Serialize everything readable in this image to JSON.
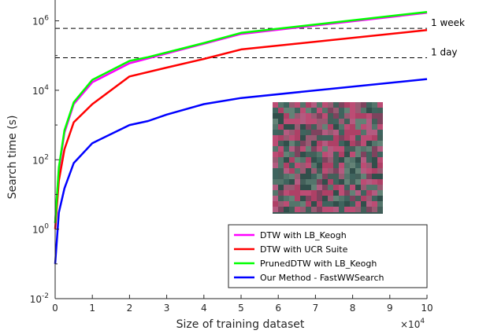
{
  "chart_data": {
    "type": "line",
    "title": "",
    "xlabel": "Size of training dataset",
    "ylabel": "Search time (s)",
    "x_multiplier_label": {
      "base": "×10",
      "exp": "4"
    },
    "xlim": [
      0,
      10
    ],
    "ylim_log10": [
      -2,
      6.6
    ],
    "yscale": "log",
    "grid": false,
    "legend_position": "bottom-right",
    "x_ticks": [
      0,
      1,
      2,
      3,
      4,
      5,
      6,
      7,
      8,
      9,
      10
    ],
    "y_ticks": [
      {
        "exp": -2,
        "base": "10",
        "sup": "-2"
      },
      {
        "exp": 0,
        "base": "10",
        "sup": "0"
      },
      {
        "exp": 2,
        "base": "10",
        "sup": "2"
      },
      {
        "exp": 4,
        "base": "10",
        "sup": "4"
      },
      {
        "exp": 6,
        "base": "10",
        "sup": "6"
      }
    ],
    "reference_lines": [
      {
        "label": "1 week",
        "y": 604800
      },
      {
        "label": "1 day",
        "y": 86400
      }
    ],
    "series": [
      {
        "name": "DTW with LB_Keogh",
        "color": "#ff00ff",
        "x": [
          0,
          0.1,
          0.25,
          0.5,
          1,
          2,
          5,
          10
        ],
        "y": [
          1.5,
          50,
          600,
          4000,
          17000,
          60000,
          420000,
          1700000
        ]
      },
      {
        "name": "DTW with UCR Suite",
        "color": "#ff0000",
        "x": [
          0,
          0.1,
          0.25,
          0.5,
          1,
          2,
          3,
          4,
          5,
          10
        ],
        "y": [
          1,
          25,
          200,
          1200,
          4000,
          25000,
          45000,
          80000,
          150000,
          540000
        ]
      },
      {
        "name": "PrunedDTW with LB_Keogh",
        "color": "#00ff00",
        "x": [
          0,
          0.1,
          0.25,
          0.5,
          1,
          2,
          2.5,
          4,
          5,
          10
        ],
        "y": [
          1.5,
          60,
          700,
          4500,
          20000,
          70000,
          90000,
          230000,
          450000,
          1800000
        ]
      },
      {
        "name": "Our Method - FastWWSearch",
        "color": "#0000ff",
        "x": [
          0,
          0.1,
          0.25,
          0.5,
          1,
          2,
          2.5,
          3,
          4,
          5,
          10
        ],
        "y": [
          0.1,
          3,
          15,
          80,
          300,
          1000,
          1300,
          2000,
          4000,
          6000,
          21000
        ]
      }
    ]
  }
}
